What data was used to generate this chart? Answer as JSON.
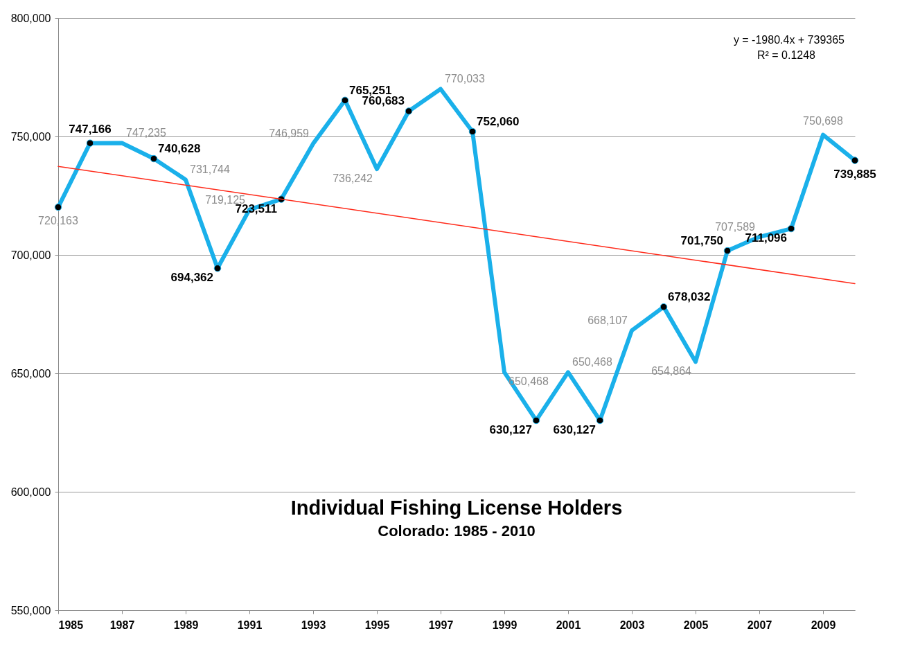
{
  "chart_data": {
    "type": "line",
    "title": "Individual Fishing License Holders",
    "subtitle": "Colorado: 1985 - 2010",
    "x": [
      1985,
      1986,
      1987,
      1988,
      1989,
      1990,
      1991,
      1992,
      1993,
      1994,
      1995,
      1996,
      1997,
      1998,
      1999,
      2000,
      2001,
      2002,
      2003,
      2004,
      2005,
      2006,
      2007,
      2008,
      2009,
      2010
    ],
    "series": [
      {
        "color": "#1ab0ea",
        "values": [
          720163,
          747166,
          747235,
          740628,
          731744,
          694362,
          719125,
          723511,
          746959,
          765251,
          736242,
          760683,
          770033,
          752060,
          650468,
          630127,
          650468,
          630127,
          668107,
          678032,
          654864,
          701750,
          707589,
          711096,
          750698,
          739885
        ],
        "value_labels": [
          "720,163",
          null,
          "747,235",
          null,
          "731,744",
          null,
          "719,125",
          null,
          "746,959",
          null,
          "736,242",
          null,
          "770,033",
          null,
          "650,468",
          null,
          "650,468",
          null,
          "668,107",
          null,
          "654,864",
          null,
          "707,589",
          null,
          "750,698",
          null
        ]
      },
      {
        "type": "scatter",
        "color": "#000000",
        "marker": "circle",
        "x": [
          1985,
          1986,
          1988,
          1990,
          1992,
          1994,
          1996,
          1998,
          2000,
          2002,
          2004,
          2006,
          2008,
          2010
        ],
        "values": [
          720163,
          747166,
          740628,
          694362,
          723511,
          765251,
          760683,
          752060,
          630127,
          630127,
          678032,
          701750,
          711096,
          739885
        ],
        "value_labels": [
          null,
          "747,166",
          "740,628",
          "694,362",
          "723,511",
          "765,251",
          "760,683",
          "752,060",
          "630,127",
          "630,127",
          "678,032",
          "701,750",
          "711,096",
          "739,885"
        ]
      },
      {
        "type": "line",
        "color": "#ff2a1a",
        "x": [
          1985,
          2010
        ],
        "values": [
          737385,
          687875
        ]
      }
    ],
    "annotations": [
      "y = -1980.4x + 739365",
      "R² = 0.1248"
    ],
    "xlim": [
      1985,
      2010
    ],
    "xticks": [
      1985,
      1987,
      1989,
      1991,
      1993,
      1995,
      1997,
      1999,
      2001,
      2003,
      2005,
      2007,
      2009
    ],
    "ylim": [
      550000,
      800000
    ],
    "yticks": [
      {
        "value": 550000,
        "label": "550,000"
      },
      {
        "value": 600000,
        "label": "600,000"
      },
      {
        "value": 650000,
        "label": "650,000"
      },
      {
        "value": 700000,
        "label": "700,000"
      },
      {
        "value": 750000,
        "label": "750,000"
      },
      {
        "value": 800000,
        "label": "800,000"
      }
    ],
    "grid": "y"
  }
}
